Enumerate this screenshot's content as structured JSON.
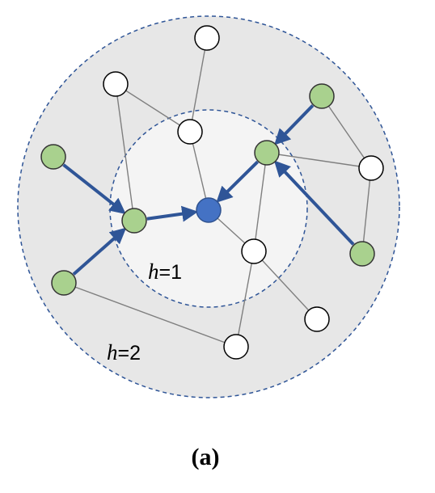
{
  "labels": {
    "hop1_var": "h",
    "hop1_rest": "=1",
    "hop2_var": "h",
    "hop2_rest": "=2",
    "caption": "(a)"
  },
  "colors": {
    "outer_fill": "#e7e7e7",
    "inner_fill": "#f4f4f4",
    "ring_stroke": "#2f5597",
    "edge": "#7f7f7f",
    "arrow": "#2f5597",
    "target_fill": "#4472c4",
    "target_stroke": "#2f528f",
    "neighbor_fill": "#a9d18e",
    "neighbor_stroke": "#333333",
    "other_fill": "#ffffff",
    "other_stroke": "#000000"
  },
  "nodes": [
    {
      "id": "target",
      "role": "target"
    },
    {
      "id": "g-left-inner",
      "role": "neighbor"
    },
    {
      "id": "g-right-inner",
      "role": "neighbor"
    },
    {
      "id": "g-top-right",
      "role": "neighbor"
    },
    {
      "id": "g-right-outer",
      "role": "neighbor"
    },
    {
      "id": "g-left-upper",
      "role": "neighbor"
    },
    {
      "id": "g-left-lower",
      "role": "neighbor"
    },
    {
      "id": "w-top",
      "role": "other"
    },
    {
      "id": "w-upper-left",
      "role": "other"
    },
    {
      "id": "w-center-top",
      "role": "other"
    },
    {
      "id": "w-right",
      "role": "other"
    },
    {
      "id": "w-center-bottom",
      "role": "other"
    },
    {
      "id": "w-bottom-right",
      "role": "other"
    },
    {
      "id": "w-bottom",
      "role": "other"
    }
  ],
  "edges": [
    {
      "from": "w-top",
      "to": "w-center-top"
    },
    {
      "from": "w-upper-left",
      "to": "w-center-top"
    },
    {
      "from": "w-upper-left",
      "to": "g-left-inner"
    },
    {
      "from": "w-center-top",
      "to": "target"
    },
    {
      "from": "target",
      "to": "w-center-bottom"
    },
    {
      "from": "w-center-bottom",
      "to": "w-bottom-right"
    },
    {
      "from": "w-center-bottom",
      "to": "w-bottom"
    },
    {
      "from": "g-left-lower",
      "to": "w-bottom"
    },
    {
      "from": "g-right-inner",
      "to": "w-center-bottom"
    },
    {
      "from": "g-right-inner",
      "to": "w-right"
    },
    {
      "from": "g-top-right",
      "to": "w-right"
    },
    {
      "from": "w-right",
      "to": "g-right-outer"
    }
  ],
  "arrows": [
    {
      "from": "g-left-upper",
      "to": "g-left-inner"
    },
    {
      "from": "g-left-lower",
      "to": "g-left-inner"
    },
    {
      "from": "g-left-inner",
      "to": "target"
    },
    {
      "from": "g-right-inner",
      "to": "target"
    },
    {
      "from": "g-top-right",
      "to": "g-right-inner"
    },
    {
      "from": "g-right-outer",
      "to": "g-right-inner"
    }
  ]
}
